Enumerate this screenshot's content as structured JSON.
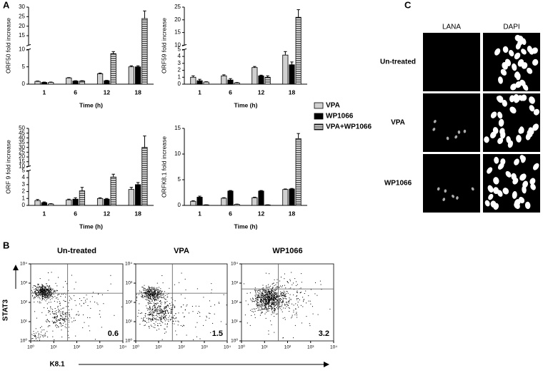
{
  "panel_labels": [
    "A",
    "B",
    "C"
  ],
  "chart_data": [
    {
      "type": "bar",
      "ylabel": "ORF50 fold increase",
      "xlabel": "Time (h)",
      "categories": [
        "1",
        "6",
        "12",
        "18"
      ],
      "ylim": [
        0,
        30
      ],
      "ybreak": [
        10,
        10
      ],
      "yticks": [
        0,
        5,
        10,
        15,
        20,
        25,
        30
      ],
      "series": [
        {
          "name": "VPA",
          "color": "#d0d0d0",
          "values": [
            0.8,
            1.8,
            3.0,
            5.0
          ],
          "errors": [
            0.1,
            0.1,
            0.2,
            0.3
          ]
        },
        {
          "name": "WP1066",
          "color": "#000000",
          "values": [
            0.5,
            0.9,
            1.0,
            5.0
          ],
          "errors": [
            0.1,
            0.1,
            0.1,
            0.3
          ]
        },
        {
          "name": "VPA+WP1066",
          "color": "#ffffff",
          "pattern": "horizontal-stripes",
          "values": [
            0.5,
            0.9,
            8.8,
            24
          ],
          "errors": [
            0.1,
            0.1,
            0.6,
            4
          ]
        }
      ]
    },
    {
      "type": "bar",
      "ylabel": "ORF59 fold increase",
      "xlabel": "Time (h)",
      "categories": [
        "1",
        "6",
        "12",
        "18"
      ],
      "ylim": [
        0,
        25
      ],
      "ybreak": [
        5,
        10
      ],
      "yticks": [
        0,
        1,
        2,
        3,
        4,
        5,
        10,
        15,
        20,
        25
      ],
      "series": [
        {
          "color": "#d0d0d0",
          "values": [
            1.0,
            1.2,
            2.4,
            4.2
          ],
          "errors": [
            0.2,
            0.15,
            0.15,
            0.5
          ]
        },
        {
          "color": "#000000",
          "values": [
            0.5,
            0.6,
            1.2,
            2.8
          ],
          "errors": [
            0.2,
            0.2,
            0.1,
            0.4
          ]
        },
        {
          "color": "#ffffff",
          "pattern": "horizontal-stripes",
          "values": [
            0.3,
            0.2,
            1.0,
            21
          ],
          "errors": [
            0.05,
            0.05,
            0.2,
            3
          ]
        }
      ]
    },
    {
      "type": "bar",
      "ylabel": "ORF 9 fold increase",
      "xlabel": "Time (h)",
      "categories": [
        "1",
        "6",
        "12",
        "18"
      ],
      "ylim": [
        0,
        50
      ],
      "ybreak": [
        5,
        10
      ],
      "yticks": [
        0,
        1,
        2,
        3,
        4,
        5,
        10,
        15,
        20,
        25,
        30,
        35,
        40,
        45,
        50
      ],
      "series": [
        {
          "color": "#d0d0d0",
          "values": [
            0.7,
            0.8,
            1.0,
            2.3
          ],
          "errors": [
            0.15,
            0.1,
            0.1,
            0.3
          ]
        },
        {
          "color": "#000000",
          "values": [
            0.4,
            0.9,
            0.9,
            3.0
          ],
          "errors": [
            0.1,
            0.2,
            0.1,
            0.3
          ]
        },
        {
          "color": "#ffffff",
          "pattern": "horizontal-stripes",
          "values": [
            0.2,
            2.1,
            4.1,
            30
          ],
          "errors": [
            0.05,
            0.5,
            0.4,
            12
          ]
        }
      ]
    },
    {
      "type": "bar",
      "ylabel": "ORFK8.1 fold increase",
      "xlabel": "Time (h)",
      "categories": [
        "1",
        "6",
        "12",
        "18"
      ],
      "ylim": [
        0,
        15
      ],
      "yticks": [
        0,
        5,
        10,
        15
      ],
      "series": [
        {
          "color": "#d0d0d0",
          "values": [
            0.8,
            1.4,
            1.5,
            3.1
          ],
          "errors": [
            0.1,
            0.1,
            0.1,
            0.1
          ]
        },
        {
          "color": "#000000",
          "values": [
            1.6,
            2.8,
            2.8,
            3.2
          ],
          "errors": [
            0.2,
            0.1,
            0.1,
            0.1
          ]
        },
        {
          "color": "#ffffff",
          "pattern": "horizontal-stripes",
          "values": [
            0.1,
            0.2,
            0.1,
            13
          ],
          "errors": [
            0.02,
            0.05,
            0.02,
            1.0
          ]
        }
      ]
    },
    {
      "type": "scatter",
      "title": "Un-treated",
      "ylabel": "STAT3",
      "xlabel": "K8.1",
      "xscale": "log",
      "yscale": "log",
      "xlim": [
        1,
        10000
      ],
      "ylim": [
        1,
        10000
      ],
      "xticks": [
        {
          "value": 1,
          "label": "10⁰"
        },
        {
          "value": 10,
          "label": "10¹"
        },
        {
          "value": 100,
          "label": "10²"
        },
        {
          "value": 1000,
          "label": "10³"
        },
        {
          "value": 10000,
          "label": "10⁴"
        }
      ],
      "yticks": [
        {
          "value": 1,
          "label": "10⁰"
        },
        {
          "value": 10,
          "label": "10¹"
        },
        {
          "value": 100,
          "label": "10²"
        },
        {
          "value": 1000,
          "label": "10³"
        },
        {
          "value": 10000,
          "label": "10⁴"
        }
      ],
      "gates": {
        "x": 40,
        "y": 300
      },
      "annotation": 0.6
    },
    {
      "type": "scatter",
      "title": "VPA",
      "xscale": "log",
      "yscale": "log",
      "xlim": [
        1,
        10000
      ],
      "ylim": [
        1,
        10000
      ],
      "xticks": [
        {
          "value": 1,
          "label": "10⁰"
        },
        {
          "value": 10,
          "label": "10¹"
        },
        {
          "value": 100,
          "label": "10²"
        },
        {
          "value": 1000,
          "label": "10³"
        },
        {
          "value": 10000,
          "label": "10⁴"
        }
      ],
      "yticks": [
        {
          "value": 1,
          "label": "10⁰"
        },
        {
          "value": 10,
          "label": "10¹"
        },
        {
          "value": 100,
          "label": "10²"
        },
        {
          "value": 1000,
          "label": "10³"
        },
        {
          "value": 10000,
          "label": "10⁴"
        }
      ],
      "gates": {
        "x": 40,
        "y": 300
      },
      "annotation": 1.5
    },
    {
      "type": "scatter",
      "title": "WP1066",
      "xscale": "log",
      "yscale": "log",
      "xlim": [
        1,
        10000
      ],
      "ylim": [
        1,
        10000
      ],
      "xticks": [
        {
          "value": 1,
          "label": "10⁰"
        },
        {
          "value": 10,
          "label": "10¹"
        },
        {
          "value": 100,
          "label": "10²"
        },
        {
          "value": 1000,
          "label": "10³"
        },
        {
          "value": 10000,
          "label": "10⁴"
        }
      ],
      "yticks": [
        {
          "value": 1,
          "label": "10⁰"
        },
        {
          "value": 10,
          "label": "10¹"
        },
        {
          "value": 100,
          "label": "10²"
        },
        {
          "value": 1000,
          "label": "10³"
        },
        {
          "value": 10000,
          "label": "10⁴"
        }
      ],
      "gates": {
        "x": 40,
        "y": 500
      },
      "annotation": 3.2
    }
  ],
  "microscopy": {
    "columns": [
      "LANA",
      "DAPI"
    ],
    "rows": [
      "Un-treated",
      "VPA",
      "WP1066"
    ]
  }
}
